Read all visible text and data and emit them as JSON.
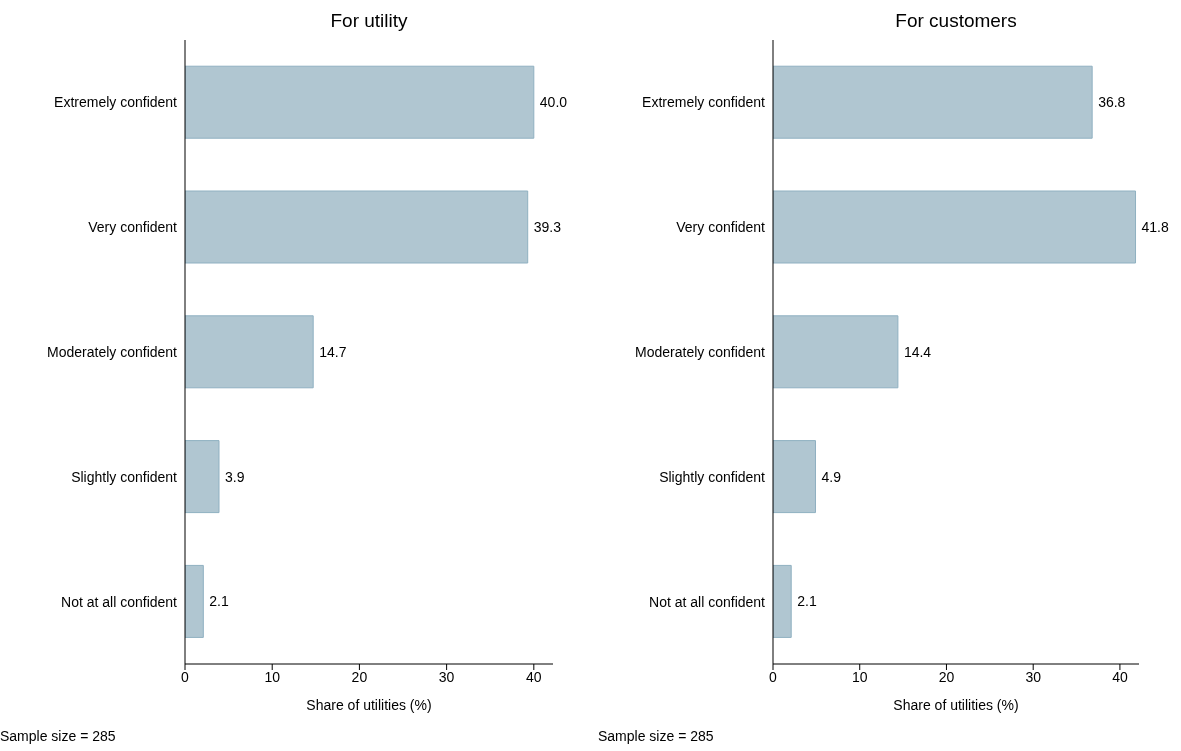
{
  "chart_data": [
    {
      "type": "bar",
      "orientation": "horizontal",
      "title": "For utility",
      "xlabel": "Share of utilities (%)",
      "categories": [
        "Extremely confident",
        "Very confident",
        "Moderately confident",
        "Slightly confident",
        "Not at all confident"
      ],
      "values": [
        40.0,
        39.3,
        14.7,
        3.9,
        2.1
      ],
      "value_labels": [
        "40.0",
        "39.3",
        "14.7",
        "3.9",
        "2.1"
      ],
      "color": "#b0c6d1",
      "xlim": [
        0,
        42.2
      ],
      "xticks": [
        0,
        10,
        20,
        30,
        40
      ],
      "grid": false,
      "legend": false,
      "annotations": [
        "Sample size = 285"
      ]
    },
    {
      "type": "bar",
      "orientation": "horizontal",
      "title": "For customers",
      "xlabel": "Share of utilities (%)",
      "categories": [
        "Extremely confident",
        "Very confident",
        "Moderately confident",
        "Slightly confident",
        "Not at all confident"
      ],
      "values": [
        36.8,
        41.8,
        14.4,
        4.9,
        2.1
      ],
      "value_labels": [
        "36.8",
        "41.8",
        "14.4",
        "4.9",
        "2.1"
      ],
      "color": "#b0c6d1",
      "xlim": [
        0,
        42.2
      ],
      "xticks": [
        0,
        10,
        20,
        30,
        40
      ],
      "grid": false,
      "legend": false,
      "annotations": [
        "Sample size = 285"
      ]
    }
  ]
}
